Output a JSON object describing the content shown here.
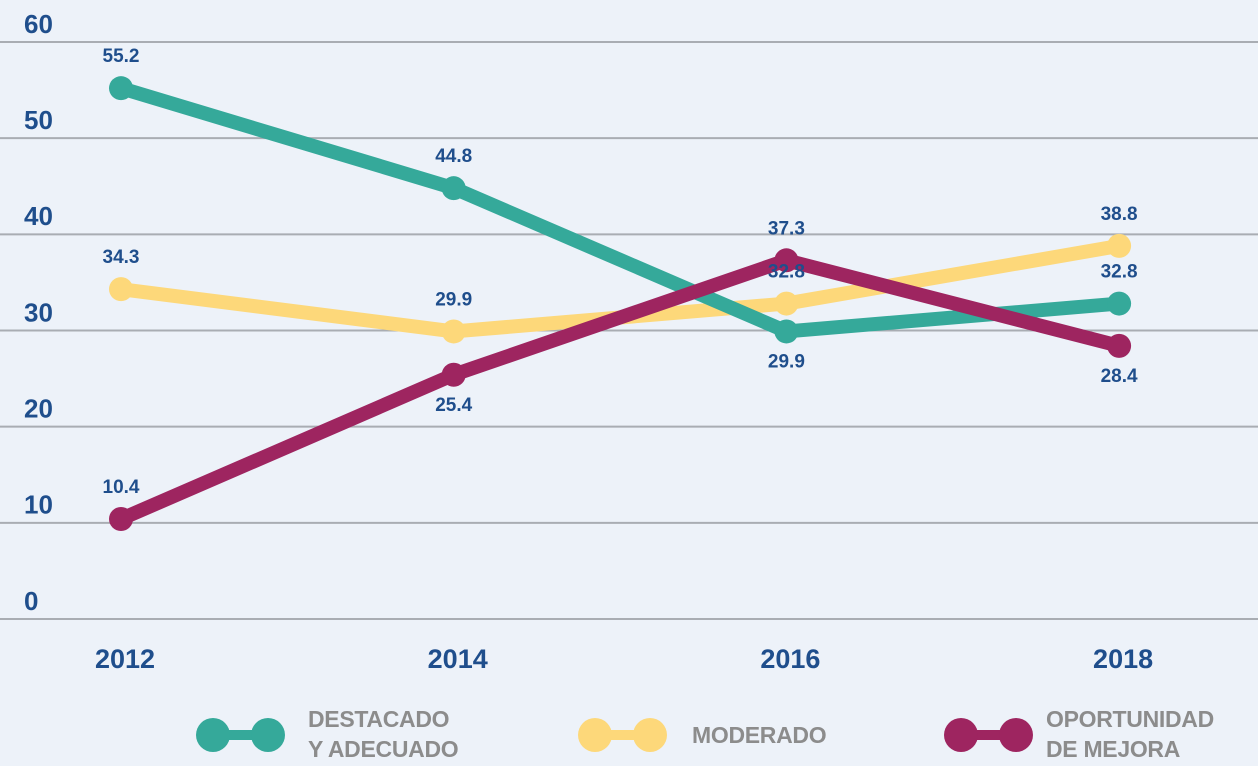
{
  "chart_data": {
    "type": "line",
    "categories": [
      "2012",
      "2014",
      "2016",
      "2018"
    ],
    "series": [
      {
        "name": "DESTACADO Y ADECUADO",
        "color": "#35a99a",
        "values": [
          55.2,
          44.8,
          29.9,
          32.8
        ]
      },
      {
        "name": "MODERADO",
        "color": "#fdd87a",
        "values": [
          34.3,
          29.9,
          32.8,
          38.8
        ]
      },
      {
        "name": "OPORTUNIDAD DE MEJORA",
        "color": "#9e2560",
        "values": [
          10.4,
          25.4,
          37.3,
          28.4
        ]
      }
    ],
    "ylim": [
      0,
      60
    ],
    "yticks": [
      0,
      10,
      20,
      30,
      40,
      50,
      60
    ],
    "grid": true,
    "legend": "bottom"
  }
}
